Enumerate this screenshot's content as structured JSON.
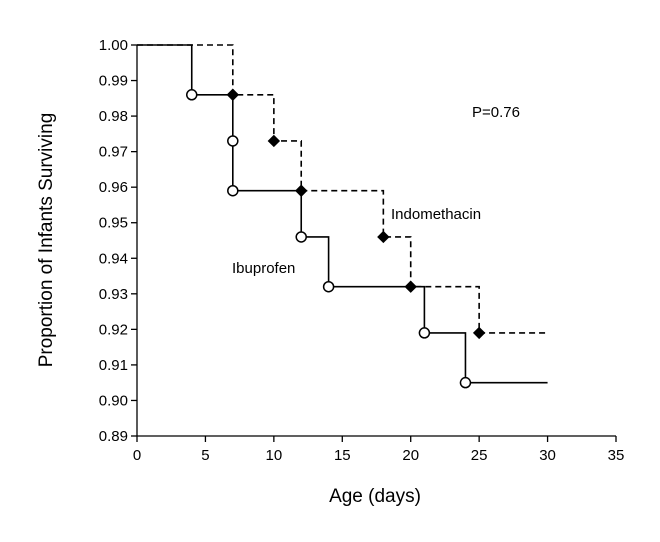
{
  "chart_data": {
    "type": "line",
    "subtype": "kaplan-meier step",
    "xlabel": "Age (days)",
    "ylabel": "Proportion of Infants Surviving",
    "xlim": [
      0,
      35
    ],
    "ylim": [
      0.89,
      1.0
    ],
    "x_ticks": [
      "0",
      "5",
      "10",
      "15",
      "20",
      "25",
      "30",
      "35"
    ],
    "y_ticks": [
      "0.89",
      "0.90",
      "0.91",
      "0.92",
      "0.93",
      "0.94",
      "0.95",
      "0.96",
      "0.97",
      "0.98",
      "0.99",
      "1.00"
    ],
    "grid": false,
    "annotation": "P=0.76",
    "series": [
      {
        "name": "Ibuprofen",
        "line_style": "solid",
        "marker": "open-circle",
        "steps": [
          [
            0,
            1.0
          ],
          [
            4,
            0.986
          ],
          [
            7,
            0.959
          ],
          [
            12,
            0.946
          ],
          [
            14,
            0.932
          ],
          [
            21,
            0.919
          ],
          [
            24,
            0.905
          ],
          [
            30,
            0.905
          ]
        ],
        "markers": [
          [
            4,
            0.986
          ],
          [
            7,
            0.973
          ],
          [
            7,
            0.959
          ],
          [
            12,
            0.946
          ],
          [
            14,
            0.932
          ],
          [
            21,
            0.919
          ],
          [
            24,
            0.905
          ]
        ]
      },
      {
        "name": "Indomethacin",
        "line_style": "dashed",
        "marker": "filled-diamond",
        "steps": [
          [
            0,
            1.0
          ],
          [
            7,
            0.986
          ],
          [
            10,
            0.973
          ],
          [
            12,
            0.959
          ],
          [
            18,
            0.946
          ],
          [
            20,
            0.932
          ],
          [
            25,
            0.919
          ],
          [
            30,
            0.919
          ]
        ],
        "markers": [
          [
            7,
            0.986
          ],
          [
            10,
            0.973
          ],
          [
            12,
            0.959
          ],
          [
            18,
            0.946
          ],
          [
            20,
            0.932
          ],
          [
            25,
            0.919
          ]
        ]
      }
    ]
  }
}
